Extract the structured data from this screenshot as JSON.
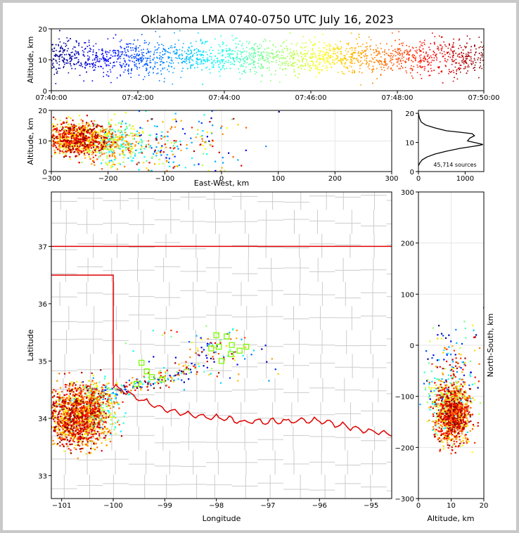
{
  "chart_data": [
    {
      "id": "time_height",
      "type": "scatter",
      "title": "Oklahoma LMA 0740-0750 UTC July 16, 2023",
      "xlabel": "",
      "ylabel": "Altitude, km",
      "xticks": [
        "07:40:00",
        "07:42:00",
        "07:44:00",
        "07:46:00",
        "07:48:00",
        "07:50:00"
      ],
      "xlim_minutes": [
        0,
        10
      ],
      "ylim": [
        0,
        20
      ],
      "yticks": [
        0,
        10,
        20
      ],
      "colormap": "jet (color = time)",
      "altitude_band_km": {
        "core": [
          6,
          16
        ],
        "outliers": [
          2,
          20
        ]
      }
    },
    {
      "id": "ew_height",
      "type": "scatter",
      "xlabel": "East-West, km",
      "ylabel": "Altitude, km",
      "xlim": [
        -300,
        300
      ],
      "xticks": [
        -300,
        -200,
        -100,
        0,
        100,
        200,
        300
      ],
      "ylim": [
        0,
        20
      ],
      "yticks": [
        0,
        10,
        20
      ],
      "grid": true
    },
    {
      "id": "altitude_histogram",
      "type": "line",
      "xlim": [
        0,
        1400
      ],
      "xticks": [
        0,
        1000
      ],
      "ylim": [
        0,
        21
      ],
      "yticks": [
        0,
        10,
        20
      ],
      "annotation": "45,714 sources",
      "series": [
        {
          "x": [
            0,
            30,
            80,
            180,
            350,
            600,
            900,
            1150,
            1300,
            1380,
            1250,
            1050,
            1100,
            1200,
            1150,
            900,
            600,
            350,
            150,
            60,
            20,
            0
          ],
          "y": [
            2,
            3,
            4,
            5,
            6,
            7,
            8,
            8.6,
            9,
            9.3,
            9.8,
            10.5,
            11.5,
            12.3,
            13,
            13.5,
            14,
            15,
            16,
            17,
            18.5,
            20
          ]
        }
      ]
    },
    {
      "id": "plan_view",
      "type": "scatter",
      "xlabel": "Longitude",
      "ylabel": "Latitude",
      "xlim": [
        -101.2,
        -94.6
      ],
      "ylim": [
        32.6,
        37.95
      ],
      "xticks": [
        -101,
        -100,
        -99,
        -98,
        -97,
        -96,
        -95
      ],
      "yticks": [
        33,
        34,
        35,
        36,
        37
      ],
      "state_line_color": "#e00000",
      "county_line_color": "#cccccc",
      "stations": [
        [
          -99.45,
          34.97
        ],
        [
          -99.35,
          34.82
        ],
        [
          -99.25,
          34.72
        ],
        [
          -99.05,
          34.68
        ],
        [
          -99.55,
          34.6
        ],
        [
          -98.1,
          35.22
        ],
        [
          -97.95,
          35.25
        ],
        [
          -98.0,
          35.45
        ],
        [
          -97.8,
          35.43
        ],
        [
          -97.7,
          35.28
        ],
        [
          -97.55,
          35.18
        ],
        [
          -97.42,
          35.25
        ],
        [
          -97.9,
          35.0
        ],
        [
          -97.72,
          35.12
        ]
      ]
    },
    {
      "id": "height_ns",
      "type": "scatter",
      "xlabel": "Altitude, km",
      "ylabel": "North-South, km",
      "xlim": [
        0,
        20
      ],
      "xticks": [
        0,
        10,
        20
      ],
      "ylim": [
        -300,
        300
      ],
      "yticks": [
        -300,
        -200,
        -100,
        0,
        100,
        200,
        300
      ],
      "grid": true
    }
  ]
}
